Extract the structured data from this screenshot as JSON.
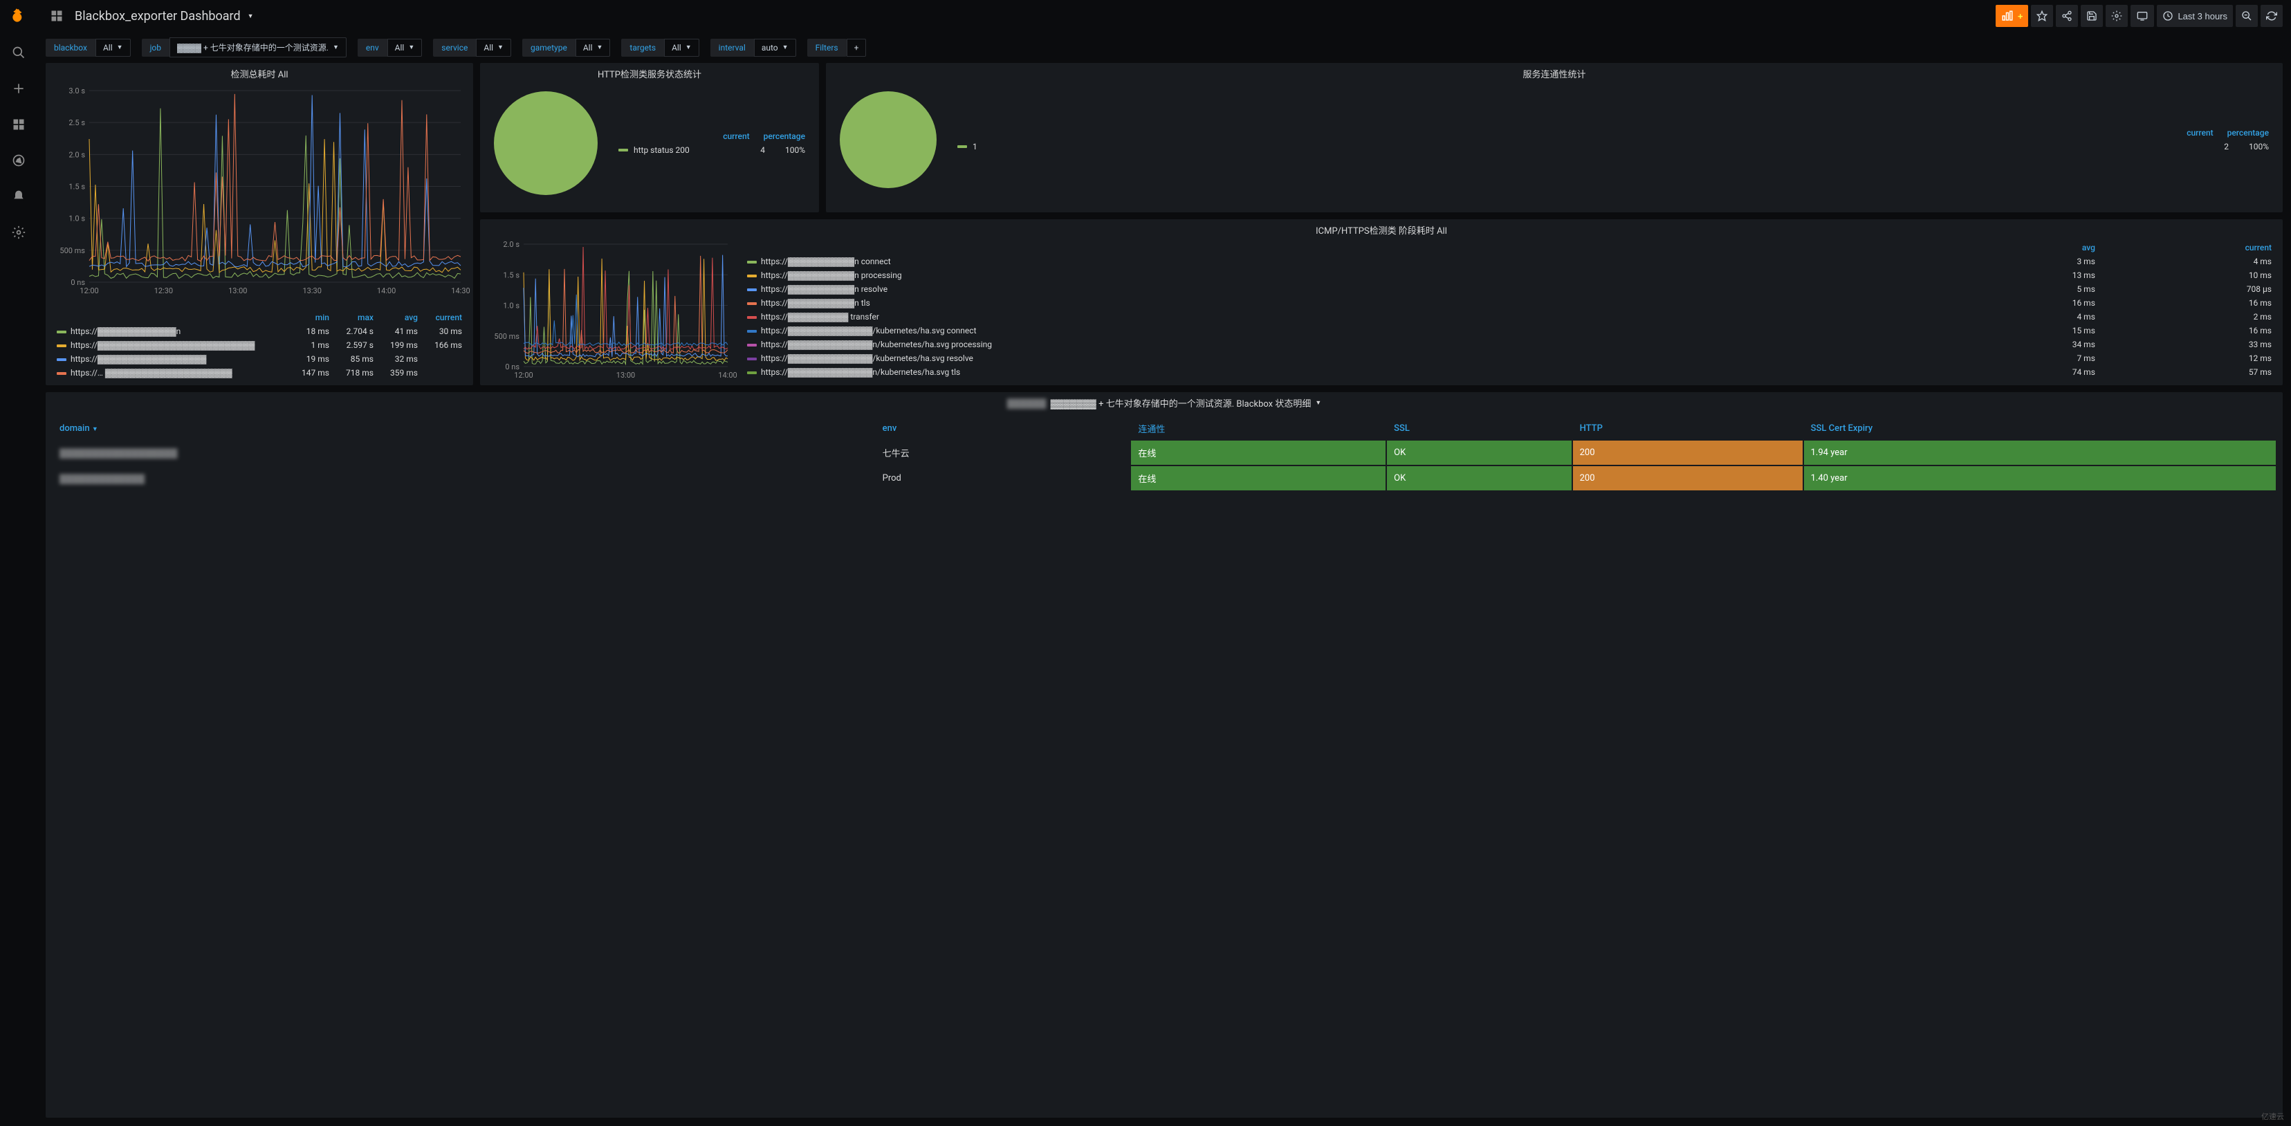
{
  "header": {
    "title": "Blackbox_exporter Dashboard",
    "time_range": "Last 3 hours"
  },
  "variables": [
    {
      "label": "blackbox",
      "value": "All"
    },
    {
      "label": "job",
      "value": "▓▓▓▓ + 七牛对象存储中的一个测试资源."
    },
    {
      "label": "env",
      "value": "All"
    },
    {
      "label": "service",
      "value": "All"
    },
    {
      "label": "gametype",
      "value": "All"
    },
    {
      "label": "targets",
      "value": "All"
    },
    {
      "label": "interval",
      "value": "auto"
    }
  ],
  "filters_label": "Filters",
  "panel1": {
    "title": "检测总耗时 All",
    "y_axis": {
      "min": 0,
      "max": 3.0,
      "ticks": [
        "0 ns",
        "500 ms",
        "1.0 s",
        "1.5 s",
        "2.0 s",
        "2.5 s",
        "3.0 s"
      ]
    },
    "x_ticks": [
      "12:00",
      "12:30",
      "13:00",
      "13:30",
      "14:00",
      "14:30"
    ],
    "grid_color": "#2c2f34",
    "series_colors": [
      "#8ab65c",
      "#e5ac30",
      "#5794f2",
      "#e5734f"
    ],
    "legend_headers": [
      "",
      "min",
      "max",
      "avg",
      "current"
    ],
    "legend_rows": [
      {
        "color": "#8ab65c",
        "name": "https://▓▓▓▓▓▓▓▓▓▓▓▓▓n",
        "min": "18 ms",
        "max": "2.704 s",
        "avg": "41 ms",
        "current": "30 ms"
      },
      {
        "color": "#e5ac30",
        "name": "https://▓▓▓▓▓▓▓▓▓▓▓▓▓▓▓▓▓▓▓▓▓▓▓▓▓▓",
        "min": "1 ms",
        "max": "2.597 s",
        "avg": "199 ms",
        "current": "166 ms"
      },
      {
        "color": "#5794f2",
        "name": "https://▓▓▓▓▓▓▓▓▓▓▓▓▓▓▓▓▓▓",
        "min": "19 ms",
        "max": "85 ms",
        "avg": "32 ms",
        "current": ""
      },
      {
        "color": "#e5734f",
        "name": "https://… ▓▓▓▓▓▓▓▓▓▓▓▓▓▓▓▓▓▓▓▓▓",
        "min": "147 ms",
        "max": "718 ms",
        "avg": "359 ms",
        "current": ""
      }
    ]
  },
  "panel2": {
    "title": "HTTP检测类服务状态统计",
    "pie_color": "#8ab65c",
    "pie_size": 150,
    "headers": [
      "current",
      "percentage"
    ],
    "row": {
      "label": "http status 200",
      "current": "4",
      "percentage": "100%"
    }
  },
  "panel3": {
    "title": "服务连通性统计",
    "pie_color": "#8ab65c",
    "pie_size": 140,
    "headers": [
      "current",
      "percentage"
    ],
    "row": {
      "label": "1",
      "current": "2",
      "percentage": "100%"
    }
  },
  "panel4": {
    "title": "ICMP/HTTPS检测类 阶段耗时 All",
    "y_axis": {
      "ticks": [
        "0 ns",
        "500 ms",
        "1.0 s",
        "1.5 s",
        "2.0 s"
      ]
    },
    "x_ticks": [
      "12:00",
      "13:00",
      "14:00"
    ],
    "legend_headers": [
      "",
      "avg",
      "current"
    ],
    "legend_rows": [
      {
        "color": "#8ab65c",
        "name": "https://▓▓▓▓▓▓▓▓▓▓▓n connect",
        "avg": "3 ms",
        "current": "4 ms"
      },
      {
        "color": "#e5ac30",
        "name": "https://▓▓▓▓▓▓▓▓▓▓▓n processing",
        "avg": "13 ms",
        "current": "10 ms"
      },
      {
        "color": "#5794f2",
        "name": "https://▓▓▓▓▓▓▓▓▓▓▓n resolve",
        "avg": "5 ms",
        "current": "708 µs"
      },
      {
        "color": "#e5734f",
        "name": "https://▓▓▓▓▓▓▓▓▓▓▓n tls",
        "avg": "16 ms",
        "current": "16 ms"
      },
      {
        "color": "#d54e4e",
        "name": "https://▓▓▓▓▓▓▓▓▓▓ transfer",
        "avg": "4 ms",
        "current": "2 ms"
      },
      {
        "color": "#3278c6",
        "name": "https://▓▓▓▓▓▓▓▓▓▓▓▓▓▓/kubernetes/ha.svg connect",
        "avg": "15 ms",
        "current": "16 ms"
      },
      {
        "color": "#b651a8",
        "name": "https://▓▓▓▓▓▓▓▓▓▓▓▓▓▓n/kubernetes/ha.svg processing",
        "avg": "34 ms",
        "current": "33 ms"
      },
      {
        "color": "#7a3fa0",
        "name": "https://▓▓▓▓▓▓▓▓▓▓▓▓▓▓/kubernetes/ha.svg resolve",
        "avg": "7 ms",
        "current": "12 ms"
      },
      {
        "color": "#6fa03f",
        "name": "https://▓▓▓▓▓▓▓▓▓▓▓▓▓▓n/kubernetes/ha.svg tls",
        "avg": "74 ms",
        "current": "57 ms"
      }
    ]
  },
  "panel5": {
    "title_prefix": "▓▓▓▓▓▓▓ + 七牛对象存储中的一个测试资源. Blackbox 状态明细",
    "columns": [
      "domain",
      "env",
      "连通性",
      "SSL",
      "HTTP",
      "SSL Cert Expiry"
    ],
    "rows": [
      {
        "domain": "▓▓▓▓▓▓▓▓▓▓▓▓▓▓▓▓▓▓",
        "env": "七牛云",
        "conn": "在线",
        "ssl": "OK",
        "http": "200",
        "expiry": "1.94 year"
      },
      {
        "domain": "▓▓▓▓▓▓▓▓▓▓▓▓▓",
        "env": "Prod",
        "conn": "在线",
        "ssl": "OK",
        "http": "200",
        "expiry": "1.40 year"
      }
    ],
    "cell_colors": {
      "ok": "#428a3a",
      "warn": "#c97d2e"
    }
  },
  "watermark": "亿速云"
}
